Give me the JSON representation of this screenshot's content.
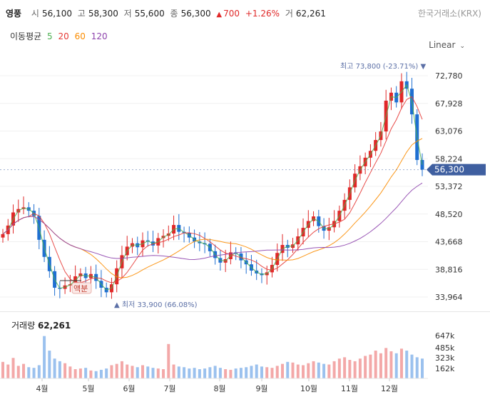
{
  "header": {
    "stock_name": "영풍",
    "open_label": "시",
    "open": "56,100",
    "high_label": "고",
    "high": "58,300",
    "low_label": "저",
    "low": "55,600",
    "close_label": "종",
    "close": "56,300",
    "change_arrow": "▲",
    "change": "700",
    "change_pct": "+1.26%",
    "volume_label": "거",
    "volume": "62,261",
    "exchange": "한국거래소(KRX)"
  },
  "moving_average": {
    "label": "이동평균",
    "periods": [
      {
        "value": "5",
        "color": "#4caf50"
      },
      {
        "value": "20",
        "color": "#e53935"
      },
      {
        "value": "60",
        "color": "#fb8c00"
      },
      {
        "value": "120",
        "color": "#8e44ad"
      }
    ]
  },
  "scale_toggle": {
    "label": "Linear"
  },
  "annotations": {
    "high_marker": "최고 73,800 (-23.71%)",
    "low_marker": "최저 33,900 (66.08%)",
    "event_label": "액분"
  },
  "volume_panel": {
    "title": "거래량",
    "value": "62,261"
  },
  "chart_data": {
    "type": "candlestick",
    "price_axis": {
      "ticks": [
        "72,780",
        "67,928",
        "63,076",
        "58,224",
        "53,372",
        "48,520",
        "43,668",
        "38,816",
        "33,964"
      ],
      "current_price": "56,300",
      "current_color": "#3f5fa0"
    },
    "volume_axis": {
      "ticks": [
        "647k",
        "485k",
        "323k",
        "162k"
      ]
    },
    "x_labels": [
      "4월",
      "5월",
      "6월",
      "7월",
      "8월",
      "9월",
      "10월",
      "11월",
      "12월"
    ],
    "colors": {
      "up": "#e02828",
      "down": "#1f6fd1"
    },
    "close_path": [
      45000,
      46500,
      48800,
      49400,
      49700,
      49100,
      48200,
      44000,
      41000,
      38500,
      35600,
      35400,
      36000,
      36200,
      37600,
      38100,
      37300,
      38000,
      36800,
      35600,
      34800,
      36200,
      39000,
      41300,
      42800,
      43400,
      42700,
      43900,
      43700,
      43000,
      44300,
      44700,
      45100,
      46600,
      45400,
      45200,
      44400,
      43700,
      43400,
      43300,
      42000,
      40800,
      40000,
      40600,
      41800,
      41600,
      40400,
      39700,
      38600,
      38100,
      37800,
      38300,
      39600,
      41700,
      43100,
      42600,
      43200,
      44600,
      46100,
      47300,
      48100,
      46400,
      45600,
      46200,
      47300,
      49100,
      51000,
      53200,
      55600,
      56900,
      58400,
      59600,
      61500,
      63000,
      68400,
      69800,
      68100,
      71800,
      70500,
      66000,
      58000,
      56300
    ],
    "volume_values": [
      250,
      210,
      310,
      190,
      220,
      170,
      160,
      200,
      640,
      420,
      300,
      260,
      230,
      180,
      140,
      150,
      160,
      120,
      110,
      130,
      150,
      200,
      220,
      260,
      210,
      190,
      170,
      200,
      180,
      160,
      150,
      140,
      520,
      210,
      180,
      170,
      150,
      160,
      140,
      150,
      170,
      190,
      160,
      140,
      130,
      150,
      160,
      170,
      190,
      210,
      180,
      170,
      160,
      190,
      220,
      250,
      240,
      210,
      200,
      230,
      260,
      240,
      220,
      210,
      260,
      300,
      320,
      280,
      260,
      300,
      340,
      360,
      420,
      380,
      460,
      410,
      380,
      450,
      420,
      360,
      320,
      300
    ]
  }
}
